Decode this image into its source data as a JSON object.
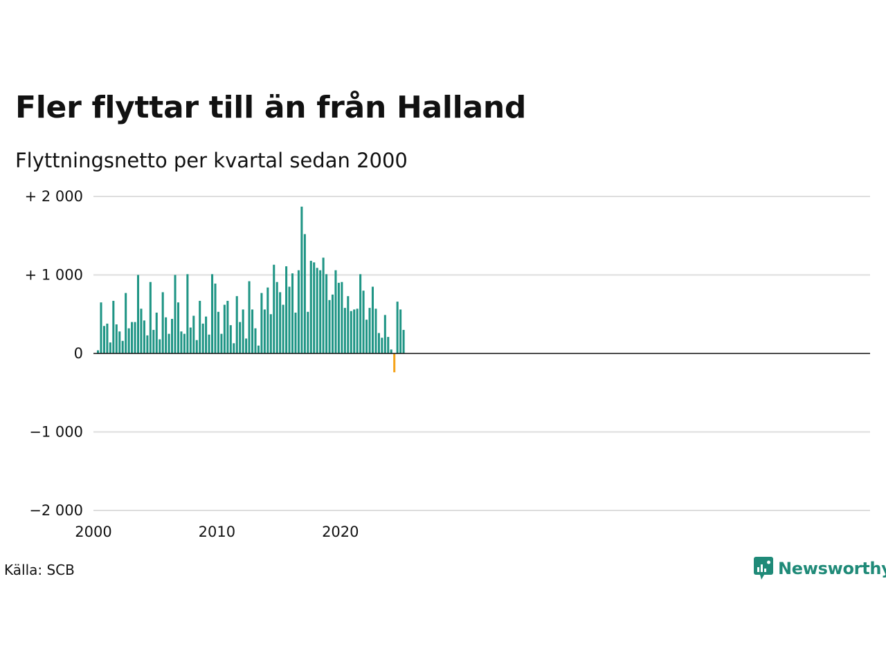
{
  "title": "Fler flyttar till än från Halland",
  "subtitle": "Flyttningsnetto per kvartal sedan 2000",
  "source": "Källa: SCB",
  "brand": "Newsworthy",
  "colors": {
    "positive": "#1f9585",
    "negative": "#f5a31a",
    "grid": "#dddddd",
    "axis": "#111111",
    "brand": "#1f8a78"
  },
  "chart_data": {
    "type": "bar",
    "x_start": "2000 Q1",
    "frequency": "quarterly",
    "ylim": [
      -2000,
      2000
    ],
    "yticks": [
      2000,
      1000,
      0,
      -1000,
      -2000
    ],
    "ytick_labels": [
      "+ 2 000",
      "+ 1 000",
      "0",
      "−1 000",
      "−2 000"
    ],
    "xticks": [
      2000,
      2010,
      2020
    ],
    "xtick_labels": [
      "2000",
      "2010",
      "2020"
    ],
    "grid": true,
    "values": [
      40,
      650,
      350,
      380,
      140,
      670,
      370,
      280,
      160,
      770,
      320,
      400,
      400,
      1000,
      570,
      420,
      230,
      910,
      300,
      520,
      180,
      780,
      460,
      250,
      440,
      1000,
      650,
      280,
      250,
      1010,
      330,
      480,
      170,
      670,
      380,
      470,
      240,
      1010,
      890,
      530,
      250,
      620,
      670,
      360,
      130,
      730,
      400,
      560,
      190,
      920,
      560,
      320,
      100,
      770,
      560,
      840,
      500,
      1130,
      910,
      780,
      620,
      1110,
      850,
      1020,
      520,
      1060,
      1870,
      1520,
      530,
      1180,
      1160,
      1090,
      1060,
      1220,
      1010,
      680,
      750,
      1060,
      900,
      910,
      580,
      730,
      540,
      560,
      570,
      1010,
      800,
      430,
      580,
      850,
      570,
      260,
      200,
      490,
      210,
      50,
      -240,
      660,
      560,
      300
    ]
  }
}
